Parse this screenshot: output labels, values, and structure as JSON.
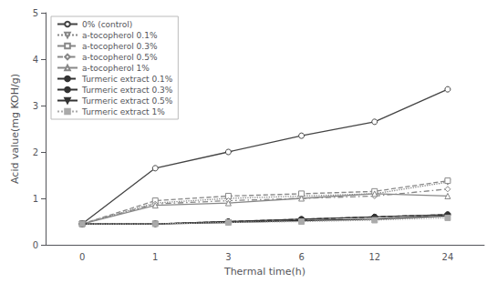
{
  "chart_data": {
    "type": "line",
    "xlabel": "Thermal time(h)",
    "ylabel": "Acid value(mg KOH/g)",
    "categories": [
      "0",
      "1",
      "3",
      "6",
      "12",
      "24"
    ],
    "series": [
      {
        "name": "0% (control)",
        "values": [
          0.45,
          1.65,
          2.0,
          2.35,
          2.65,
          3.35
        ],
        "color": "#444444",
        "marker": "open_circle",
        "line_style": "solid"
      },
      {
        "name": "a-tocopherol 0.1%",
        "values": [
          0.45,
          0.9,
          1.0,
          1.05,
          1.1,
          1.35
        ],
        "color": "#888888",
        "marker": "open_triangle_down",
        "line_style": "dotted"
      },
      {
        "name": "a-tocopherol 0.3%",
        "values": [
          0.45,
          0.95,
          1.05,
          1.1,
          1.15,
          1.38
        ],
        "color": "#888888",
        "marker": "open_square",
        "line_style": "dashed"
      },
      {
        "name": "a-tocopherol 0.5%",
        "values": [
          0.45,
          0.88,
          0.95,
          1.0,
          1.05,
          1.2
        ],
        "color": "#888888",
        "marker": "open_diamond",
        "line_style": "dashdot"
      },
      {
        "name": "a-tocopherol 1%",
        "values": [
          0.45,
          0.85,
          0.9,
          1.0,
          1.1,
          1.05
        ],
        "color": "#888888",
        "marker": "open_triangle_up",
        "line_style": "solid"
      },
      {
        "name": "Turmeric extract 0.1%",
        "values": [
          0.45,
          0.45,
          0.5,
          0.55,
          0.6,
          0.65
        ],
        "color": "#333333",
        "marker": "filled_circle",
        "line_style": "dashed"
      },
      {
        "name": "Turmeric extract 0.3%",
        "values": [
          0.45,
          0.45,
          0.5,
          0.55,
          0.6,
          0.65
        ],
        "color": "#333333",
        "marker": "filled_circle",
        "line_style": "solid"
      },
      {
        "name": "Turmeric extract 0.5%",
        "values": [
          0.45,
          0.45,
          0.48,
          0.52,
          0.55,
          0.62
        ],
        "color": "#333333",
        "marker": "filled_triangle_down",
        "line_style": "solid"
      },
      {
        "name": "Turmeric extract 1%",
        "values": [
          0.45,
          0.45,
          0.48,
          0.5,
          0.53,
          0.58
        ],
        "color": "#aaaaaa",
        "marker": "filled_square",
        "line_style": "dotted"
      }
    ],
    "ylim": [
      0,
      5
    ],
    "yticks": [
      0,
      1,
      2,
      3,
      4,
      5
    ],
    "grid": false,
    "legend": "upper left"
  }
}
